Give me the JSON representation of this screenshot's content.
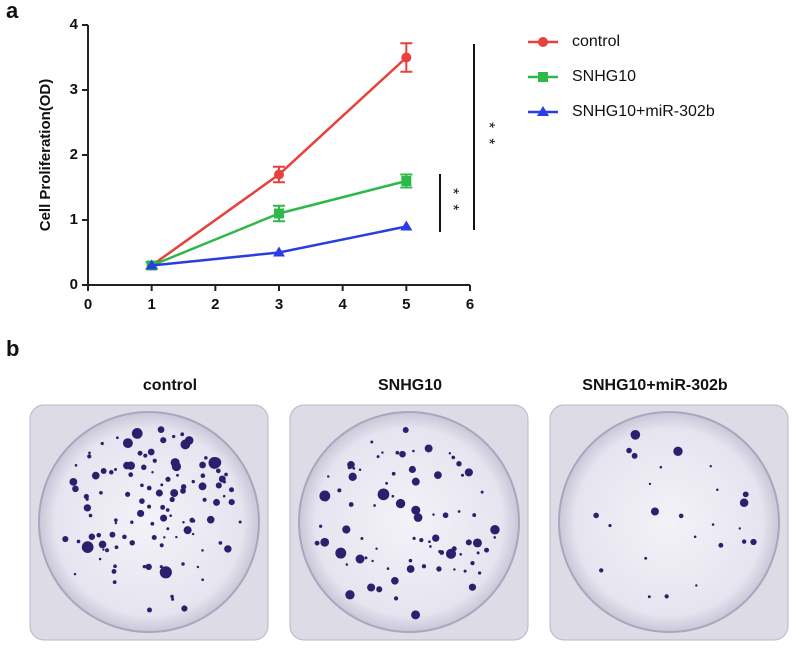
{
  "chart_data": {
    "type": "line",
    "panel_label": "a",
    "ylabel": "Cell Proliferation(OD)",
    "x": [
      1,
      3,
      5
    ],
    "series": [
      {
        "name": "control",
        "color": "#e8403a",
        "marker": "circle",
        "values": [
          0.3,
          1.7,
          3.5
        ],
        "errors": [
          0.05,
          0.12,
          0.22
        ]
      },
      {
        "name": "SNHG10",
        "color": "#2db84a",
        "marker": "square",
        "values": [
          0.3,
          1.1,
          1.6
        ],
        "errors": [
          0.05,
          0.12,
          0.1
        ]
      },
      {
        "name": "SNHG10+miR-302b",
        "color": "#2a3ee0",
        "marker": "triangle",
        "values": [
          0.3,
          0.5,
          0.9
        ]
      }
    ],
    "xlim": [
      0,
      6
    ],
    "xticks": [
      0,
      1,
      2,
      3,
      4,
      5,
      6
    ],
    "ylim": [
      0,
      4
    ],
    "yticks": [
      0,
      1,
      2,
      3,
      4
    ],
    "annotations": [
      "**",
      "**"
    ],
    "legend": "upper right"
  },
  "panel_b": {
    "label": "b",
    "plates": [
      "control",
      "SNHG10",
      "SNHG10+miR-302b"
    ]
  }
}
